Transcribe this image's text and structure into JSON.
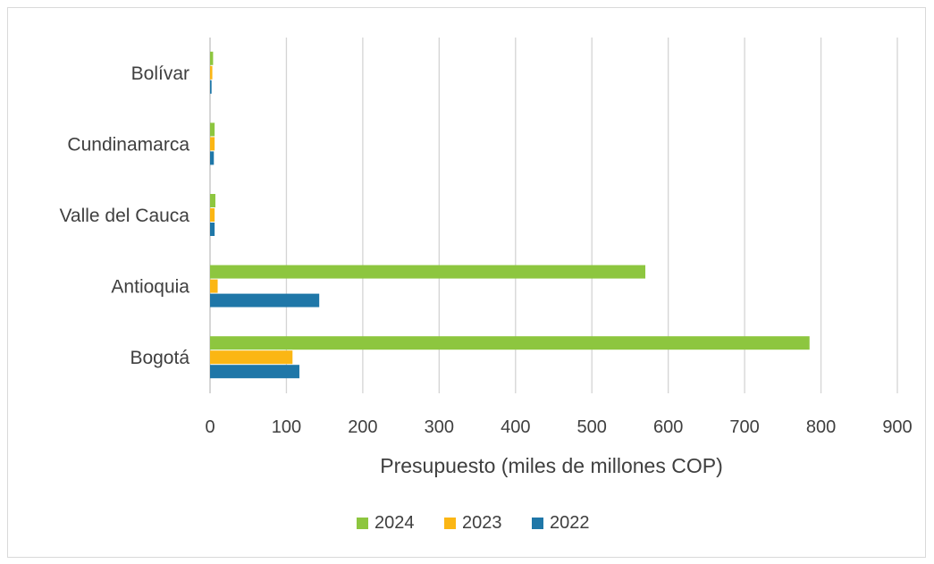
{
  "chart_data": {
    "type": "bar",
    "orientation": "horizontal",
    "categories": [
      "Bolívar",
      "Cundinamarca",
      "Valle del Cauca",
      "Antioquia",
      "Bogotá"
    ],
    "series": [
      {
        "name": "2024",
        "color": "#8dc63f",
        "values": [
          4,
          6,
          7,
          570,
          785
        ]
      },
      {
        "name": "2023",
        "color": "#fbb614",
        "values": [
          3,
          6,
          6,
          10,
          108
        ]
      },
      {
        "name": "2022",
        "color": "#1f77a8",
        "values": [
          2,
          5,
          6,
          143,
          117
        ]
      }
    ],
    "xlim": [
      0,
      900
    ],
    "xticks": [
      0,
      100,
      200,
      300,
      400,
      500,
      600,
      700,
      800,
      900
    ],
    "xlabel": "Presupuesto (miles de millones COP)",
    "ylabel": "",
    "title": "",
    "grid": "vertical",
    "legend": "bottom"
  }
}
